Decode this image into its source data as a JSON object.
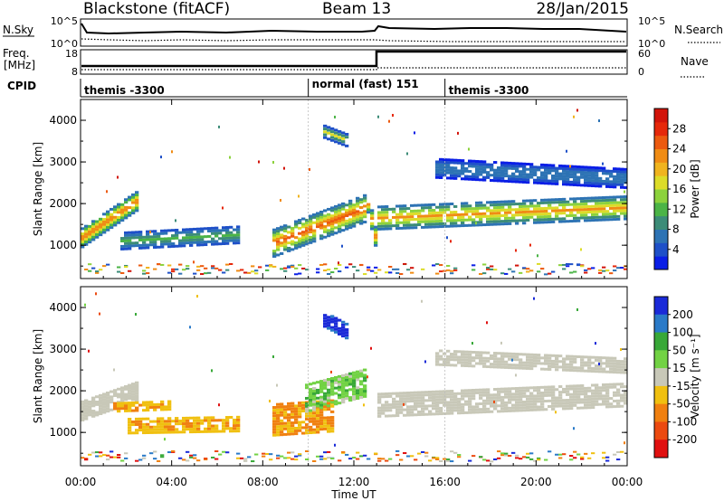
{
  "header": {
    "title": "Blackstone (fitACF)",
    "beam": "Beam 13",
    "date": "28/Jan/2015"
  },
  "nsky_panel": {
    "left_label": "N.Sky",
    "left_ticks": [
      "10^5",
      "10^0"
    ],
    "right_ticks": [
      "10^5",
      "10^0"
    ],
    "right_label": "N.Search"
  },
  "freq_panel": {
    "left_label_1": "Freq.",
    "left_label_2": "[MHz]",
    "left_ticks": [
      "18",
      "8"
    ],
    "right_ticks": [
      "60",
      "0"
    ],
    "right_label": "Nave"
  },
  "cpid_panel": {
    "label": "CPID",
    "segments": [
      {
        "label": "themis -3300",
        "start_hour": 0,
        "end_hour": 10
      },
      {
        "label": "normal (fast) 151",
        "start_hour": 10,
        "end_hour": 16
      },
      {
        "label": "themis -3300",
        "start_hour": 16,
        "end_hour": 24
      }
    ]
  },
  "x_axis": {
    "label": "Time UT",
    "ticks": [
      "00:00",
      "04:00",
      "08:00",
      "12:00",
      "16:00",
      "20:00",
      "00:00"
    ]
  },
  "chart_data": [
    {
      "type": "heatmap",
      "name": "power",
      "ylabel": "Slant Range [km]",
      "y_ticks": [
        "1000",
        "2000",
        "3000",
        "4000"
      ],
      "ylim": [
        200,
        4500
      ],
      "xlim_hours": [
        0,
        24
      ],
      "colorbar": {
        "label": "Power [dB]",
        "ticks": [
          "4",
          "8",
          "12",
          "16",
          "20",
          "24",
          "28"
        ],
        "range": [
          0,
          32
        ],
        "colors": [
          "#0a1ee6",
          "#1e50c8",
          "#2d73b4",
          "#3c8c78",
          "#4bb446",
          "#8cd23c",
          "#dcdc28",
          "#f0b41e",
          "#f08c14",
          "#ec5a0f",
          "#e6280a",
          "#d2140a"
        ]
      },
      "regions": [
        {
          "start_hour": 0.0,
          "end_hour": 2.6,
          "center_start_km": 1150,
          "center_end_km": 2100,
          "width_km": 500,
          "power_db": 26
        },
        {
          "start_hour": 1.8,
          "end_hour": 7.0,
          "center_start_km": 1100,
          "center_end_km": 1250,
          "width_km": 450,
          "power_db": 12
        },
        {
          "start_hour": 8.5,
          "end_hour": 12.6,
          "center_start_km": 1050,
          "center_end_km": 1900,
          "width_km": 700,
          "power_db": 26
        },
        {
          "start_hour": 10.6,
          "end_hour": 11.8,
          "center_start_km": 3750,
          "center_end_km": 3500,
          "width_km": 350,
          "power_db": 16
        },
        {
          "start_hour": 12.6,
          "end_hour": 13.0,
          "center_start_km": 2100,
          "center_end_km": 1100,
          "width_km": 500,
          "power_db": 24
        },
        {
          "start_hour": 13.0,
          "end_hour": 24.0,
          "center_start_km": 1650,
          "center_end_km": 1900,
          "width_km": 600,
          "power_db": 22
        },
        {
          "start_hour": 15.5,
          "end_hour": 24.0,
          "center_start_km": 2850,
          "center_end_km": 2600,
          "width_km": 500,
          "power_db": 8
        }
      ]
    },
    {
      "type": "heatmap",
      "name": "velocity",
      "ylabel": "Slant Range [km]",
      "y_ticks": [
        "1000",
        "2000",
        "3000",
        "4000"
      ],
      "ylim": [
        200,
        4500
      ],
      "xlim_hours": [
        0,
        24
      ],
      "colorbar": {
        "label": "Velocity [m s⁻¹]",
        "ticks": [
          "200",
          "100",
          "50",
          "15",
          "-15",
          "-50",
          "-100",
          "-200"
        ],
        "colors": [
          "#1a2ad8",
          "#2a7ac8",
          "#38a838",
          "#72d244",
          "#c8c8b8",
          "#f0c010",
          "#f08010",
          "#ec4a10",
          "#e01010"
        ]
      },
      "regions": [
        {
          "start_hour": 0.0,
          "end_hour": 2.6,
          "center_start_km": 1500,
          "center_end_km": 2000,
          "width_km": 500,
          "velocity": 0
        },
        {
          "start_hour": 1.5,
          "end_hour": 4.0,
          "center_start_km": 1600,
          "center_end_km": 1650,
          "width_km": 250,
          "velocity": -50
        },
        {
          "start_hour": 2.0,
          "end_hour": 7.0,
          "center_start_km": 1150,
          "center_end_km": 1200,
          "width_km": 400,
          "velocity": -50
        },
        {
          "start_hour": 8.5,
          "end_hour": 11.2,
          "center_start_km": 1300,
          "center_end_km": 1400,
          "width_km": 800,
          "velocity": -60
        },
        {
          "start_hour": 9.8,
          "end_hour": 12.6,
          "center_start_km": 1800,
          "center_end_km": 2200,
          "width_km": 700,
          "velocity": 30
        },
        {
          "start_hour": 10.6,
          "end_hour": 11.8,
          "center_start_km": 3750,
          "center_end_km": 3400,
          "width_km": 400,
          "velocity": 200
        },
        {
          "start_hour": 13.0,
          "end_hour": 24.0,
          "center_start_km": 1650,
          "center_end_km": 1900,
          "width_km": 600,
          "velocity": 0
        },
        {
          "start_hour": 15.5,
          "end_hour": 24.0,
          "center_start_km": 2800,
          "center_end_km": 2600,
          "width_km": 400,
          "velocity": 0
        }
      ]
    }
  ]
}
